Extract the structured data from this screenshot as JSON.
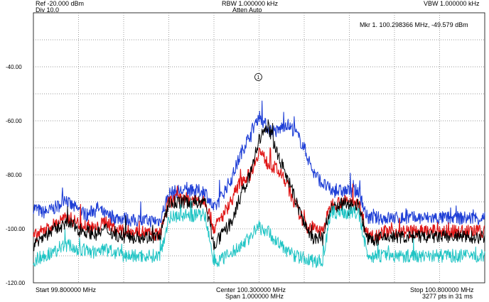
{
  "header": {
    "ref_level": "Ref -20.000 dBm",
    "div": "Div 10.0",
    "rbw": "RBW 1.000000 kHz",
    "atten": "Atten Auto",
    "vbw": "VBW 1.000000 kHz",
    "marker_readout": "Mkr 1. 100.298366 MHz, -49.579 dBm"
  },
  "footer": {
    "start": "Start 99.800000 MHz",
    "center": "Center 100.300000 MHz",
    "span": "Span 1.000000 MHz",
    "stop": "Stop 100.800000 MHz",
    "points": "3277 pts in 31 ms"
  },
  "marker": {
    "label": "1",
    "freq_mhz": 100.298366,
    "level_dbm": -49.579
  },
  "colors": {
    "trace_blue": "#1f3fd6",
    "trace_red": "#e01818",
    "trace_black": "#000000",
    "trace_cyan": "#1fc4c4",
    "grid": "#777777"
  },
  "chart_data": {
    "type": "line",
    "x_unit": "MHz",
    "y_unit": "dBm",
    "xlim": [
      99.8,
      100.8
    ],
    "ylim": [
      -120,
      -20
    ],
    "x_divisions": 10,
    "y_divisions": 10,
    "yticks": [
      {
        "value": -40,
        "label": "-40.00"
      },
      {
        "value": -60,
        "label": "-60.00"
      },
      {
        "value": -80,
        "label": "-80.00"
      },
      {
        "value": -100,
        "label": "-100.00"
      },
      {
        "value": -120,
        "label": "-120.00"
      }
    ],
    "grid": true,
    "series": [
      {
        "color": "#1f3fd6",
        "x": [
          99.8,
          99.82,
          99.84,
          99.86,
          99.87,
          99.88,
          99.9,
          99.92,
          99.94,
          99.96,
          99.98,
          100.0,
          100.02,
          100.04,
          100.06,
          100.08,
          100.1,
          100.12,
          100.14,
          100.16,
          100.18,
          100.2,
          100.22,
          100.24,
          100.26,
          100.28,
          100.3,
          100.32,
          100.34,
          100.36,
          100.38,
          100.4,
          100.42,
          100.44,
          100.46,
          100.48,
          100.5,
          100.52,
          100.54,
          100.56,
          100.58,
          100.6,
          100.62,
          100.64,
          100.66,
          100.68,
          100.7,
          100.72,
          100.74,
          100.76,
          100.78,
          100.8
        ],
        "y": [
          -92,
          -94,
          -93,
          -91,
          -88,
          -91,
          -93,
          -95,
          -92,
          -95,
          -96,
          -96,
          -97,
          -97,
          -97,
          -97,
          -87,
          -86,
          -86,
          -86,
          -86,
          -93,
          -87,
          -81,
          -72,
          -65,
          -58,
          -63,
          -64,
          -61,
          -64,
          -70,
          -79,
          -83,
          -86,
          -86,
          -86,
          -86,
          -96,
          -96,
          -96,
          -96,
          -96,
          -96,
          -96,
          -96,
          -96,
          -96,
          -96,
          -96,
          -96,
          -96
        ]
      },
      {
        "color": "#e01818",
        "x": [
          99.8,
          99.82,
          99.84,
          99.86,
          99.88,
          99.9,
          99.92,
          99.94,
          99.96,
          99.98,
          100.0,
          100.02,
          100.04,
          100.06,
          100.08,
          100.1,
          100.12,
          100.14,
          100.16,
          100.18,
          100.2,
          100.22,
          100.24,
          100.26,
          100.28,
          100.3,
          100.32,
          100.34,
          100.36,
          100.38,
          100.4,
          100.42,
          100.44,
          100.46,
          100.48,
          100.5,
          100.52,
          100.54,
          100.56,
          100.58,
          100.6,
          100.62,
          100.64,
          100.66,
          100.68,
          100.7,
          100.72,
          100.74,
          100.76,
          100.78,
          100.8
        ],
        "y": [
          -103,
          -101,
          -99,
          -97,
          -96,
          -98,
          -99,
          -100,
          -97,
          -100,
          -101,
          -101,
          -101,
          -102,
          -102,
          -90,
          -89,
          -89,
          -89,
          -89,
          -100,
          -95,
          -89,
          -82,
          -80,
          -71,
          -76,
          -78,
          -83,
          -91,
          -98,
          -100,
          -101,
          -91,
          -90,
          -90,
          -90,
          -102,
          -102,
          -101,
          -101,
          -101,
          -101,
          -101,
          -101,
          -101,
          -101,
          -101,
          -101,
          -101,
          -101
        ]
      },
      {
        "color": "#000000",
        "x": [
          99.8,
          99.82,
          99.84,
          99.86,
          99.88,
          99.9,
          99.92,
          99.94,
          99.96,
          99.98,
          100.0,
          100.02,
          100.04,
          100.06,
          100.08,
          100.1,
          100.12,
          100.14,
          100.16,
          100.18,
          100.2,
          100.22,
          100.24,
          100.26,
          100.28,
          100.3,
          100.32,
          100.34,
          100.36,
          100.38,
          100.4,
          100.42,
          100.44,
          100.46,
          100.48,
          100.5,
          100.52,
          100.54,
          100.56,
          100.58,
          100.6,
          100.62,
          100.64,
          100.66,
          100.68,
          100.7,
          100.72,
          100.74,
          100.76,
          100.78,
          100.8
        ],
        "y": [
          -106,
          -103,
          -101,
          -99,
          -98,
          -100,
          -101,
          -102,
          -100,
          -102,
          -103,
          -103,
          -103,
          -103,
          -103,
          -91,
          -90,
          -90,
          -90,
          -90,
          -106,
          -102,
          -97,
          -88,
          -80,
          -67,
          -62,
          -72,
          -80,
          -89,
          -98,
          -104,
          -103,
          -93,
          -91,
          -91,
          -91,
          -104,
          -104,
          -103,
          -103,
          -103,
          -103,
          -103,
          -103,
          -103,
          -103,
          -103,
          -103,
          -103,
          -103
        ]
      },
      {
        "color": "#1fc4c4",
        "x": [
          99.8,
          99.82,
          99.84,
          99.86,
          99.88,
          99.9,
          99.92,
          99.94,
          99.96,
          99.98,
          100.0,
          100.02,
          100.04,
          100.06,
          100.08,
          100.1,
          100.12,
          100.14,
          100.16,
          100.18,
          100.2,
          100.22,
          100.24,
          100.26,
          100.28,
          100.3,
          100.32,
          100.34,
          100.36,
          100.38,
          100.4,
          100.42,
          100.44,
          100.46,
          100.48,
          100.5,
          100.52,
          100.54,
          100.56,
          100.58,
          100.6,
          100.62,
          100.64,
          100.66,
          100.68,
          100.7,
          100.72,
          100.74,
          100.76,
          100.78,
          100.8
        ],
        "y": [
          -112,
          -110,
          -109,
          -107,
          -106,
          -108,
          -108,
          -109,
          -107,
          -109,
          -110,
          -110,
          -110,
          -110,
          -110,
          -96,
          -95,
          -95,
          -95,
          -95,
          -112,
          -111,
          -109,
          -106,
          -103,
          -99,
          -101,
          -105,
          -108,
          -110,
          -111,
          -112,
          -112,
          -94,
          -94,
          -94,
          -94,
          -110,
          -110,
          -110,
          -110,
          -110,
          -110,
          -110,
          -110,
          -110,
          -110,
          -110,
          -110,
          -110,
          -110
        ]
      }
    ]
  }
}
